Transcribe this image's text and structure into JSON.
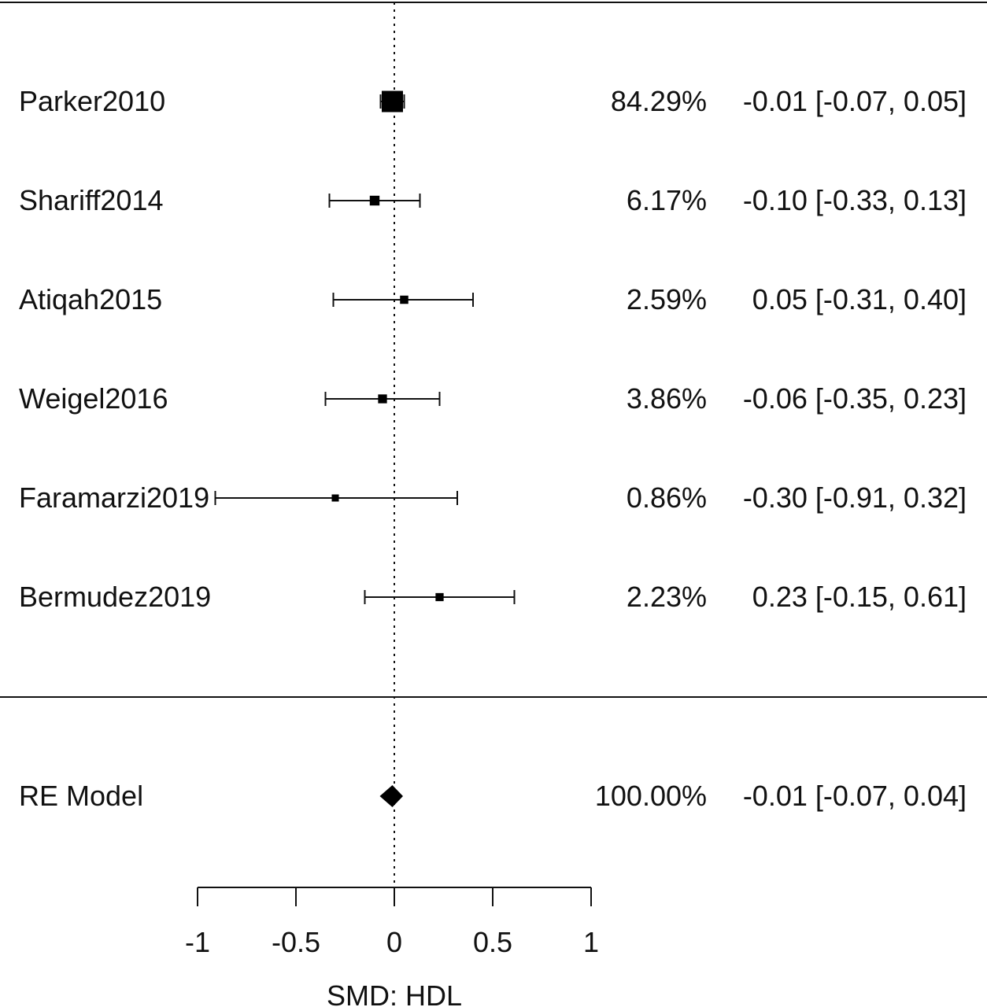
{
  "chart_data": {
    "type": "forest",
    "xlabel": "SMD: HDL",
    "xlim": [
      -1,
      1
    ],
    "reference_line": 0,
    "ticks": [
      {
        "value": -1,
        "label": "-1"
      },
      {
        "value": -0.5,
        "label": "-0.5"
      },
      {
        "value": 0,
        "label": "0"
      },
      {
        "value": 0.5,
        "label": "0.5"
      },
      {
        "value": 1,
        "label": "1"
      }
    ],
    "studies": [
      {
        "name": "Parker2010",
        "weight": 84.29,
        "weight_label": "84.29%",
        "estimate": -0.01,
        "ci_low": -0.07,
        "ci_high": 0.05,
        "effect_label": "-0.01 [-0.07, 0.05]"
      },
      {
        "name": "Shariff2014",
        "weight": 6.17,
        "weight_label": "6.17%",
        "estimate": -0.1,
        "ci_low": -0.33,
        "ci_high": 0.13,
        "effect_label": "-0.10 [-0.33, 0.13]"
      },
      {
        "name": "Atiqah2015",
        "weight": 2.59,
        "weight_label": "2.59%",
        "estimate": 0.05,
        "ci_low": -0.31,
        "ci_high": 0.4,
        "effect_label": "0.05 [-0.31, 0.40]"
      },
      {
        "name": "Weigel2016",
        "weight": 3.86,
        "weight_label": "3.86%",
        "estimate": -0.06,
        "ci_low": -0.35,
        "ci_high": 0.23,
        "effect_label": "-0.06 [-0.35, 0.23]"
      },
      {
        "name": "Faramarzi2019",
        "weight": 0.86,
        "weight_label": "0.86%",
        "estimate": -0.3,
        "ci_low": -0.91,
        "ci_high": 0.32,
        "effect_label": "-0.30 [-0.91, 0.32]"
      },
      {
        "name": "Bermudez2019",
        "weight": 2.23,
        "weight_label": "2.23%",
        "estimate": 0.23,
        "ci_low": -0.15,
        "ci_high": 0.61,
        "effect_label": "0.23 [-0.15, 0.61]"
      }
    ],
    "summary": {
      "name": "RE Model",
      "weight": 100.0,
      "weight_label": "100.00%",
      "estimate": -0.01,
      "ci_low": -0.07,
      "ci_high": 0.04,
      "effect_label": "-0.01 [-0.07, 0.04]"
    }
  }
}
